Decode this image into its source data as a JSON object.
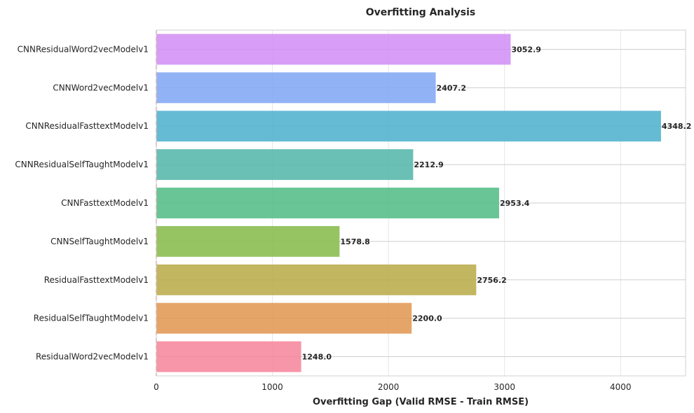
{
  "chart_data": {
    "type": "bar",
    "orientation": "horizontal",
    "title": "Overfitting Analysis",
    "xlabel": "Overfitting Gap (Valid RMSE - Train RMSE)",
    "ylabel": "",
    "xlim": [
      0,
      4560
    ],
    "xticks": [
      0,
      1000,
      2000,
      3000,
      4000
    ],
    "grid": true,
    "reference_line": {
      "x": 0,
      "color": "#e06060",
      "style": "dashed"
    },
    "categories": [
      "CNNResidualWord2vecModelv1",
      "CNNWord2vecModelv1",
      "CNNResidualFasttextModelv1",
      "CNNResidualSelfTaughtModelv1",
      "CNNFasttextModelv1",
      "CNNSelfTaughtModelv1",
      "ResidualFasttextModelv1",
      "ResidualSelfTaughtModelv1",
      "ResidualWord2vecModelv1"
    ],
    "values": [
      3052.9,
      2407.2,
      4348.2,
      2212.9,
      2953.4,
      1578.8,
      2756.2,
      2200.0,
      1248.0
    ],
    "value_labels": [
      "3052.9",
      "2407.2",
      "4348.2",
      "2212.9",
      "2953.4",
      "1578.8",
      "2756.2",
      "2200.0",
      "1248.0"
    ],
    "colors": [
      "#d18cf5",
      "#7fa4f5",
      "#4bafcc",
      "#50b5a8",
      "#4fbb83",
      "#85ba48",
      "#b7a944",
      "#e0954f",
      "#f6829a"
    ]
  }
}
